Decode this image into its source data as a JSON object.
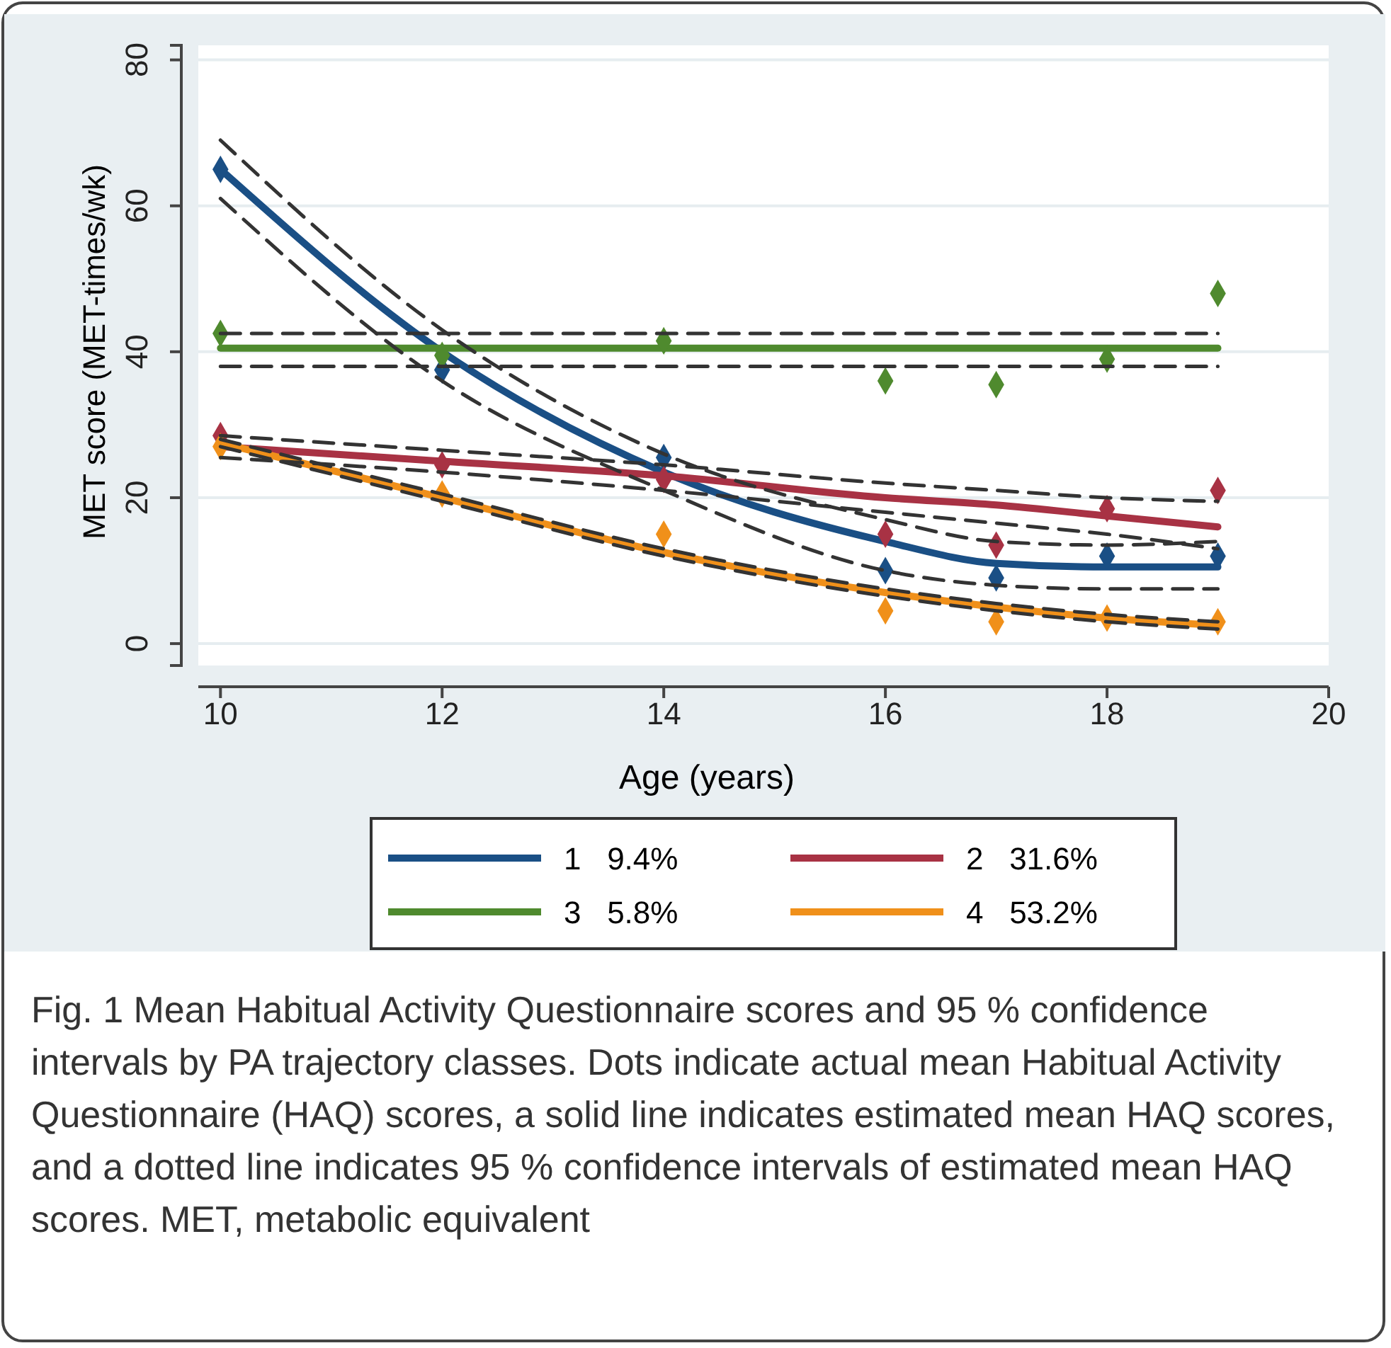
{
  "chart_data": {
    "type": "line",
    "xlabel": "Age (years)",
    "ylabel": "MET score (MET-times/wk)",
    "x": [
      10,
      12,
      14,
      16,
      17,
      18,
      19
    ],
    "xlim": [
      9.8,
      20
    ],
    "xticks": [
      10,
      12,
      14,
      16,
      18,
      20
    ],
    "ylim": [
      -3,
      82
    ],
    "yticks": [
      0,
      20,
      40,
      60,
      80
    ],
    "grid": "y",
    "legend": "bottom",
    "series": [
      {
        "name": "1   9.4%",
        "color": "#1a4f85",
        "line_style": "solid",
        "values": [
          65,
          40,
          23.5,
          14,
          11,
          10.5,
          10.5
        ]
      },
      {
        "name": "2   31.6%",
        "color": "#a83244",
        "line_style": "solid",
        "values": [
          27,
          25,
          23,
          20,
          19,
          17.5,
          16
        ]
      },
      {
        "name": "3   5.8%",
        "color": "#4f8a2e",
        "line_style": "solid",
        "values": [
          40.5,
          40.5,
          40.5,
          40.5,
          40.5,
          40.5,
          40.5
        ]
      },
      {
        "name": "4   53.2%",
        "color": "#f0901a",
        "line_style": "solid",
        "values": [
          27.5,
          20,
          12.5,
          7,
          5,
          3.5,
          2.5
        ]
      },
      {
        "color": "#333333",
        "type": "line",
        "line_style": "dashed",
        "values": [
          69,
          43,
          26,
          17,
          14,
          13.5,
          14
        ]
      },
      {
        "color": "#333333",
        "type": "line",
        "line_style": "dashed",
        "values": [
          61,
          36,
          21,
          10,
          8,
          7.5,
          7.5
        ]
      },
      {
        "color": "#333333",
        "type": "line",
        "line_style": "dashed",
        "values": [
          28.5,
          26.5,
          24.5,
          22,
          21,
          20,
          19.5
        ]
      },
      {
        "color": "#333333",
        "type": "line",
        "line_style": "dashed",
        "values": [
          25.5,
          23.5,
          21,
          18,
          16.5,
          15,
          13
        ]
      },
      {
        "color": "#333333",
        "type": "line",
        "line_style": "dashed",
        "values": [
          42.5,
          42.5,
          42.5,
          42.5,
          42.5,
          42.5,
          42.5
        ]
      },
      {
        "color": "#333333",
        "type": "line",
        "line_style": "dashed",
        "values": [
          38,
          38,
          38,
          38,
          38,
          38,
          38
        ]
      },
      {
        "color": "#333333",
        "type": "line",
        "line_style": "dashed",
        "values": [
          28,
          20.5,
          13,
          7.5,
          5.5,
          4,
          3
        ]
      },
      {
        "color": "#333333",
        "type": "line",
        "line_style": "dashed",
        "values": [
          27,
          19.5,
          12,
          6.5,
          4.5,
          3,
          2
        ]
      },
      {
        "color": "#1a4f85",
        "type": "scatter",
        "marker": "diamond",
        "values": [
          65,
          37.5,
          25.5,
          10,
          9,
          12,
          12
        ]
      },
      {
        "color": "#a83244",
        "type": "scatter",
        "marker": "diamond",
        "values": [
          28.5,
          24.5,
          22.5,
          15,
          13.5,
          18.5,
          21
        ]
      },
      {
        "color": "#4f8a2e",
        "type": "scatter",
        "marker": "diamond",
        "values": [
          42.5,
          39.5,
          41.5,
          36,
          35.5,
          39,
          48
        ]
      },
      {
        "color": "#f0901a",
        "type": "scatter",
        "marker": "diamond",
        "values": [
          27,
          20.5,
          15,
          4.5,
          3,
          3.5,
          3
        ]
      }
    ],
    "annotations": [
      "Fig. 1 Mean Habitual Activity Questionnaire scores and 95 % confidence intervals by PA trajectory classes. Dots indicate actual mean Habitual Activity Questionnaire (HAQ) scores, a solid line indicates estimated mean HAQ scores, and a dotted line indicates 95 % confidence intervals of estimated mean HAQ scores. MET, metabolic equivalent"
    ]
  }
}
